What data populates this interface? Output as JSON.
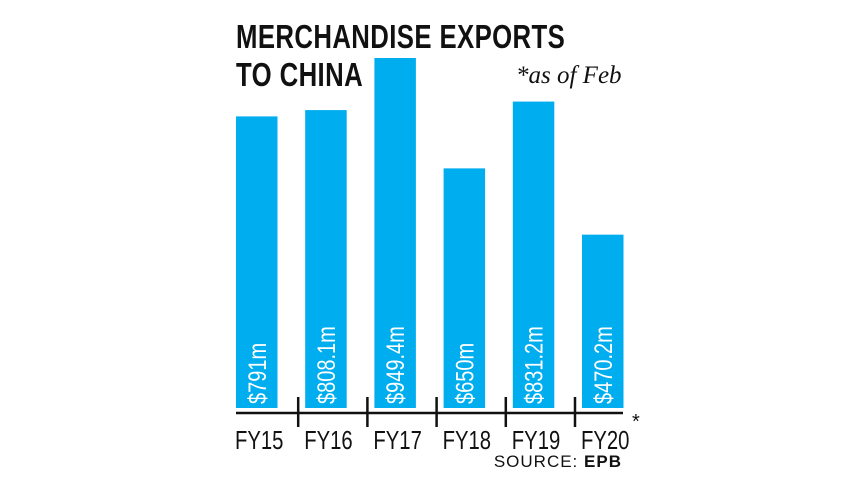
{
  "chart_data": {
    "type": "bar",
    "title": "MERCHANDISE EXPORTS TO CHINA",
    "title_lines": [
      "MERCHANDISE EXPORTS",
      "TO CHINA"
    ],
    "note": "*as of Feb",
    "categories": [
      "FY15",
      "FY16",
      "FY17",
      "FY18",
      "FY19",
      "FY20"
    ],
    "category_suffix": [
      "",
      "",
      "",
      "",
      "",
      "*"
    ],
    "values": [
      791,
      808.1,
      949.4,
      650,
      831.2,
      470.2
    ],
    "data_labels": [
      "$791m",
      "$808.1m",
      "$949.4m",
      "$650m",
      "$831.2m",
      "$470.2m"
    ],
    "unit": "$m",
    "ylim": [
      0,
      949.4
    ],
    "grid": false,
    "bar_color": "#00aeef",
    "source_label": "SOURCE:",
    "source_name": "EPB"
  }
}
